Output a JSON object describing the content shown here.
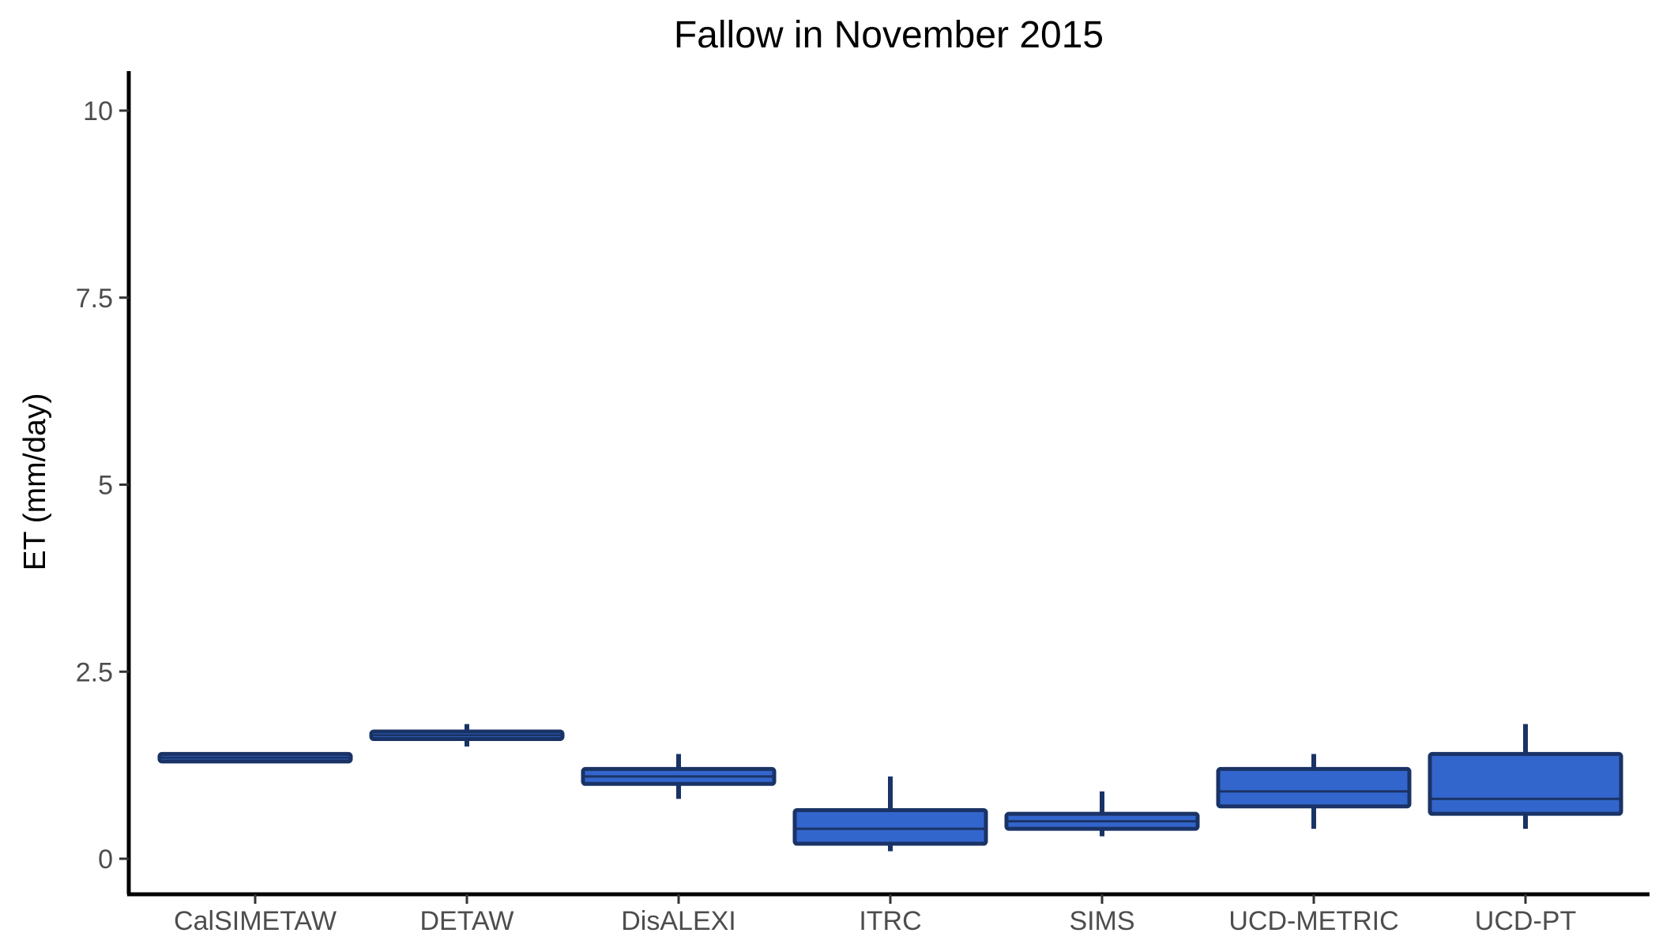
{
  "chart_data": {
    "type": "boxplot",
    "title": "Fallow in November 2015",
    "xlabel": "",
    "ylabel": "ET (mm/day)",
    "ylim": [
      -0.5,
      10.5
    ],
    "yticks": [
      0,
      2.5,
      5,
      7.5,
      10
    ],
    "ytick_labels": [
      "0",
      "2.5",
      "5",
      "7.5",
      "10"
    ],
    "grid": false,
    "legend": "none",
    "colors": {
      "box_fill": "#3366cc",
      "box_stroke": "#1a3366",
      "axis": "#000000"
    },
    "categories": [
      "CalSIMETAW",
      "DETAW",
      "DisALEXI",
      "ITRC",
      "SIMS",
      "UCD-METRIC",
      "UCD-PT"
    ],
    "boxes": [
      {
        "label": "CalSIMETAW",
        "min": 1.3,
        "q1": 1.3,
        "median": 1.35,
        "q3": 1.4,
        "max": 1.4
      },
      {
        "label": "DETAW",
        "min": 1.5,
        "q1": 1.6,
        "median": 1.65,
        "q3": 1.7,
        "max": 1.8
      },
      {
        "label": "DisALEXI",
        "min": 0.8,
        "q1": 1.0,
        "median": 1.1,
        "q3": 1.2,
        "max": 1.4
      },
      {
        "label": "ITRC",
        "min": 0.1,
        "q1": 0.2,
        "median": 0.4,
        "q3": 0.65,
        "max": 1.1
      },
      {
        "label": "SIMS",
        "min": 0.3,
        "q1": 0.4,
        "median": 0.5,
        "q3": 0.6,
        "max": 0.9
      },
      {
        "label": "UCD-METRIC",
        "min": 0.4,
        "q1": 0.7,
        "median": 0.9,
        "q3": 1.2,
        "max": 1.4
      },
      {
        "label": "UCD-PT",
        "min": 0.4,
        "q1": 0.6,
        "median": 0.8,
        "q3": 1.4,
        "max": 1.8
      }
    ]
  }
}
